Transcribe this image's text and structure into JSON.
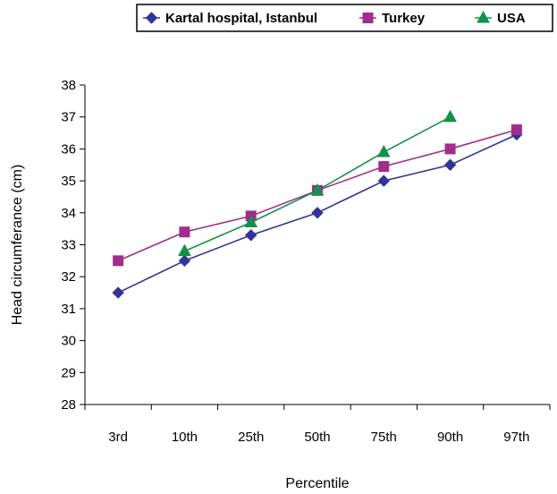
{
  "chart_data": {
    "type": "line",
    "categories": [
      "3rd",
      "10th",
      "25th",
      "50th",
      "75th",
      "90th",
      "97th"
    ],
    "series": [
      {
        "name": "Kartal hospital, Istanbul",
        "color": "#333399",
        "marker": "diamond",
        "values": [
          31.5,
          32.5,
          33.3,
          34.0,
          35.0,
          35.5,
          36.45
        ]
      },
      {
        "name": "Turkey",
        "color": "#a12d8c",
        "marker": "square",
        "values": [
          32.5,
          33.4,
          33.9,
          34.7,
          35.45,
          36.0,
          36.6
        ]
      },
      {
        "name": "USA",
        "color": "#14904a",
        "marker": "triangle",
        "values": [
          null,
          32.8,
          33.7,
          34.7,
          35.9,
          37.0,
          null
        ]
      }
    ],
    "xlabel": "Percentile",
    "ylabel": "Head circumferance (cm)",
    "ylim": [
      28,
      38
    ],
    "yticks": [
      "28",
      "29",
      "30",
      "31",
      "32",
      "33",
      "34",
      "35",
      "36",
      "37",
      "38"
    ],
    "grid": false,
    "legend_position": "top-right"
  }
}
